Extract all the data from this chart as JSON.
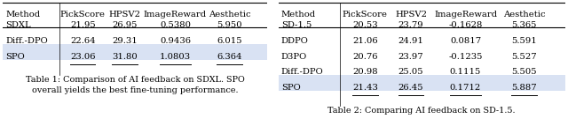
{
  "table1": {
    "caption": "Table 1: Comparison of AI feedback on SDXL. SPO\noverall yields the best fine-tuning performance.",
    "headers": [
      "Method",
      "PickScore",
      "HPSV2",
      "ImageReward",
      "Aesthetic"
    ],
    "rows": [
      [
        "SDXL",
        "21.95",
        "26.95",
        "0.5380",
        "5.950"
      ],
      [
        "Diff.-DPO",
        "22.64",
        "29.31",
        "0.9436",
        "6.015"
      ],
      [
        "SPO",
        "23.06",
        "31.80",
        "1.0803",
        "6.364"
      ]
    ],
    "highlight_row": 2,
    "underline_cols": [
      1,
      2,
      3,
      4
    ]
  },
  "table2": {
    "caption": "Table 2: Comparing AI feedback on SD-1.5.",
    "headers": [
      "Method",
      "PickScore",
      "HPSV2",
      "ImageReward",
      "Aesthetic"
    ],
    "rows": [
      [
        "SD-1.5",
        "20.53",
        "23.79",
        "-0.1628",
        "5.365"
      ],
      [
        "DDPO",
        "21.06",
        "24.91",
        "0.0817",
        "5.591"
      ],
      [
        "D3PO",
        "20.76",
        "23.97",
        "-0.1235",
        "5.527"
      ],
      [
        "Diff.-DPO",
        "20.98",
        "25.05",
        "0.1115",
        "5.505"
      ],
      [
        "SPO",
        "21.43",
        "26.45",
        "0.1712",
        "5.887"
      ]
    ],
    "highlight_row": 4,
    "underline_cols": [
      1,
      2,
      3,
      4
    ]
  },
  "highlight_color": "#d9e2f3",
  "bg_color": "#ffffff",
  "font_size": 7.2,
  "caption_font_size": 6.9
}
